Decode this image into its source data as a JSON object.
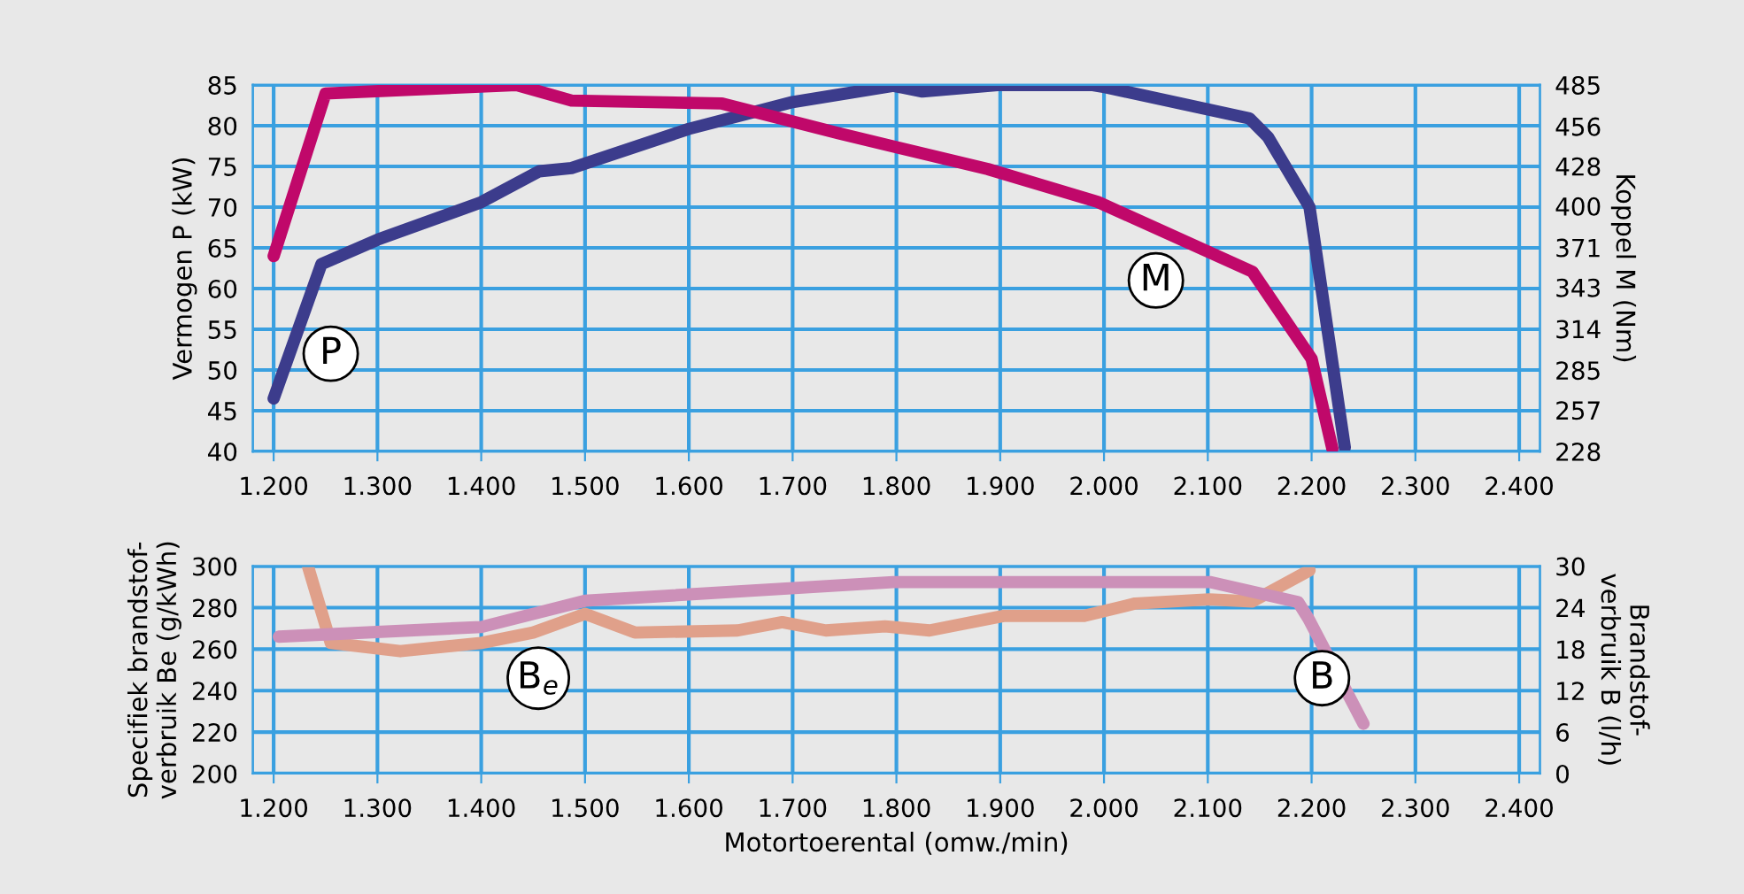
{
  "chart_data": [
    {
      "type": "line",
      "ylabel": "Vermogen P (kW)",
      "y2label": "Koppel M (Nm)",
      "xlim": [
        1180,
        2420
      ],
      "xticks": [
        {
          "value": 1200,
          "label": "1.200"
        },
        {
          "value": 1300,
          "label": "1.300"
        },
        {
          "value": 1400,
          "label": "1.400"
        },
        {
          "value": 1500,
          "label": "1.500"
        },
        {
          "value": 1600,
          "label": "1.600"
        },
        {
          "value": 1700,
          "label": "1.700"
        },
        {
          "value": 1800,
          "label": "1.800"
        },
        {
          "value": 1900,
          "label": "1.900"
        },
        {
          "value": 2000,
          "label": "2.000"
        },
        {
          "value": 2100,
          "label": "2.100"
        },
        {
          "value": 2200,
          "label": "2.200"
        },
        {
          "value": 2300,
          "label": "2.300"
        },
        {
          "value": 2400,
          "label": "2.400"
        }
      ],
      "ylim": [
        40,
        85
      ],
      "yticks": [
        40,
        45,
        50,
        55,
        60,
        65,
        70,
        75,
        80,
        85
      ],
      "y2lim": [
        228,
        485
      ],
      "y2ticks": [
        228,
        257,
        285,
        314,
        343,
        371,
        400,
        428,
        456,
        485
      ],
      "grid": true,
      "line_style": "solid",
      "marker": "none",
      "legend": false,
      "series": [
        {
          "color": "#3c3c8c",
          "x": [
            1200,
            1246,
            1300,
            1400,
            1456,
            1487,
            1600,
            1700,
            1797,
            1825,
            1900,
            1988,
            2002,
            2140,
            2158,
            2198,
            2232
          ],
          "values": [
            46.5,
            63,
            66,
            70.6,
            74.4,
            74.8,
            79.6,
            82.9,
            84.9,
            84.2,
            85,
            85,
            84.7,
            80.9,
            78.6,
            70,
            40.5
          ]
        },
        {
          "color": "#c0086a",
          "axis": "y2",
          "x": [
            1200,
            1250,
            1434,
            1487,
            1632,
            1745,
            1888,
            1994,
            2143,
            2200,
            2220
          ],
          "values": [
            365,
            479,
            485,
            474,
            472,
            451,
            426,
            403,
            354,
            293,
            230
          ]
        }
      ],
      "annotations": [
        {
          "text": "P",
          "x": 1255,
          "y": 52
        },
        {
          "text": "M",
          "x": 2050,
          "y": 61
        }
      ]
    },
    {
      "type": "line",
      "ylabel": "Specifiek brandstof-\nverbruik Be (g/kWh)",
      "y2label": "Brandstof-\nverbruik B (l/h)",
      "xlabel": "Motortoerental (omw./min)",
      "xlim": [
        1180,
        2420
      ],
      "xticks": [
        {
          "value": 1200,
          "label": "1.200"
        },
        {
          "value": 1300,
          "label": "1.300"
        },
        {
          "value": 1400,
          "label": "1.400"
        },
        {
          "value": 1500,
          "label": "1.500"
        },
        {
          "value": 1600,
          "label": "1.600"
        },
        {
          "value": 1700,
          "label": "1.700"
        },
        {
          "value": 1800,
          "label": "1.800"
        },
        {
          "value": 1900,
          "label": "1.900"
        },
        {
          "value": 2000,
          "label": "2.000"
        },
        {
          "value": 2100,
          "label": "2.100"
        },
        {
          "value": 2200,
          "label": "2.200"
        },
        {
          "value": 2300,
          "label": "2.300"
        },
        {
          "value": 2400,
          "label": "2.400"
        }
      ],
      "ylim": [
        200,
        300
      ],
      "yticks": [
        200,
        220,
        240,
        260,
        280,
        300
      ],
      "y2lim": [
        0,
        30
      ],
      "y2ticks": [
        0,
        6,
        12,
        18,
        24,
        30
      ],
      "grid": true,
      "line_style": "solid",
      "marker": "none",
      "legend": false,
      "series": [
        {
          "color": "#e0a08a",
          "x": [
            1233,
            1255,
            1322,
            1400,
            1450,
            1500,
            1548,
            1647,
            1690,
            1732,
            1789,
            1832,
            1903,
            1981,
            2030,
            2101,
            2143,
            2198
          ],
          "values": [
            300,
            263,
            259,
            263,
            268,
            277,
            268,
            269,
            273,
            269,
            271,
            269,
            276,
            276,
            282,
            284,
            283,
            298
          ]
        },
        {
          "color": "#cc90b8",
          "axis": "y2",
          "x": [
            1205,
            1400,
            1500,
            1797,
            2102,
            2187,
            2197,
            2250
          ],
          "values": [
            19.8,
            21.2,
            25,
            27.7,
            27.7,
            24.8,
            22.4,
            7.2
          ]
        }
      ],
      "annotations": [
        {
          "text": "B$_{e}$",
          "x": 1455,
          "y": 246
        },
        {
          "text": "B",
          "x": 2210,
          "y": 246
        }
      ]
    }
  ]
}
